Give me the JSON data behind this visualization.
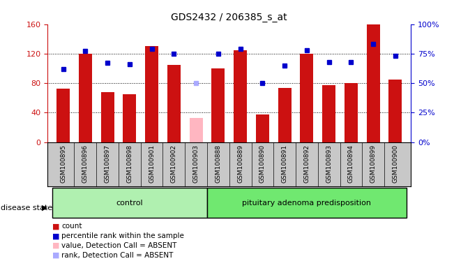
{
  "title": "GDS2432 / 206385_s_at",
  "samples": [
    "GSM100895",
    "GSM100896",
    "GSM100897",
    "GSM100898",
    "GSM100901",
    "GSM100902",
    "GSM100903",
    "GSM100888",
    "GSM100889",
    "GSM100890",
    "GSM100891",
    "GSM100892",
    "GSM100893",
    "GSM100894",
    "GSM100899",
    "GSM100900"
  ],
  "counts": [
    72,
    120,
    68,
    65,
    130,
    105,
    null,
    100,
    125,
    37,
    73,
    120,
    77,
    80,
    160,
    85
  ],
  "absent_counts": [
    null,
    null,
    null,
    null,
    null,
    null,
    33,
    null,
    null,
    null,
    null,
    null,
    null,
    null,
    null,
    null
  ],
  "percentile_ranks": [
    62,
    77,
    67,
    66,
    79,
    75,
    null,
    75,
    79,
    50,
    65,
    78,
    68,
    68,
    83,
    73
  ],
  "absent_ranks": [
    null,
    null,
    null,
    null,
    null,
    null,
    50,
    null,
    null,
    null,
    null,
    null,
    null,
    null,
    null,
    null
  ],
  "group_labels": [
    "control",
    "pituitary adenoma predisposition"
  ],
  "ctrl_range": [
    0,
    6
  ],
  "pit_range": [
    7,
    15
  ],
  "bar_color": "#cc1111",
  "absent_bar_color": "#ffb6c1",
  "rank_color": "#0000cc",
  "absent_rank_color": "#aaaaff",
  "ylim_left": [
    0,
    160
  ],
  "ylim_right": [
    0,
    100
  ],
  "yticks_left": [
    0,
    40,
    80,
    120,
    160
  ],
  "ytick_labels_left": [
    "0",
    "40",
    "80",
    "120",
    "160"
  ],
  "yticks_right": [
    0,
    25,
    50,
    75,
    100
  ],
  "ytick_labels_right": [
    "0%",
    "25%",
    "50%",
    "75%",
    "100%"
  ],
  "grid_lines": [
    40,
    80,
    120
  ],
  "disease_state_label": "disease state",
  "background_color": "#ffffff",
  "tick_bg_color": "#c8c8c8",
  "group_fill_ctrl": "#b0f0b0",
  "group_fill_pit": "#70e870",
  "legend_items": [
    {
      "color": "#cc1111",
      "label": "count",
      "symbol": "square"
    },
    {
      "color": "#0000cc",
      "label": "percentile rank within the sample",
      "symbol": "square"
    },
    {
      "color": "#ffb6c1",
      "label": "value, Detection Call = ABSENT",
      "symbol": "square"
    },
    {
      "color": "#aaaaff",
      "label": "rank, Detection Call = ABSENT",
      "symbol": "square"
    }
  ]
}
